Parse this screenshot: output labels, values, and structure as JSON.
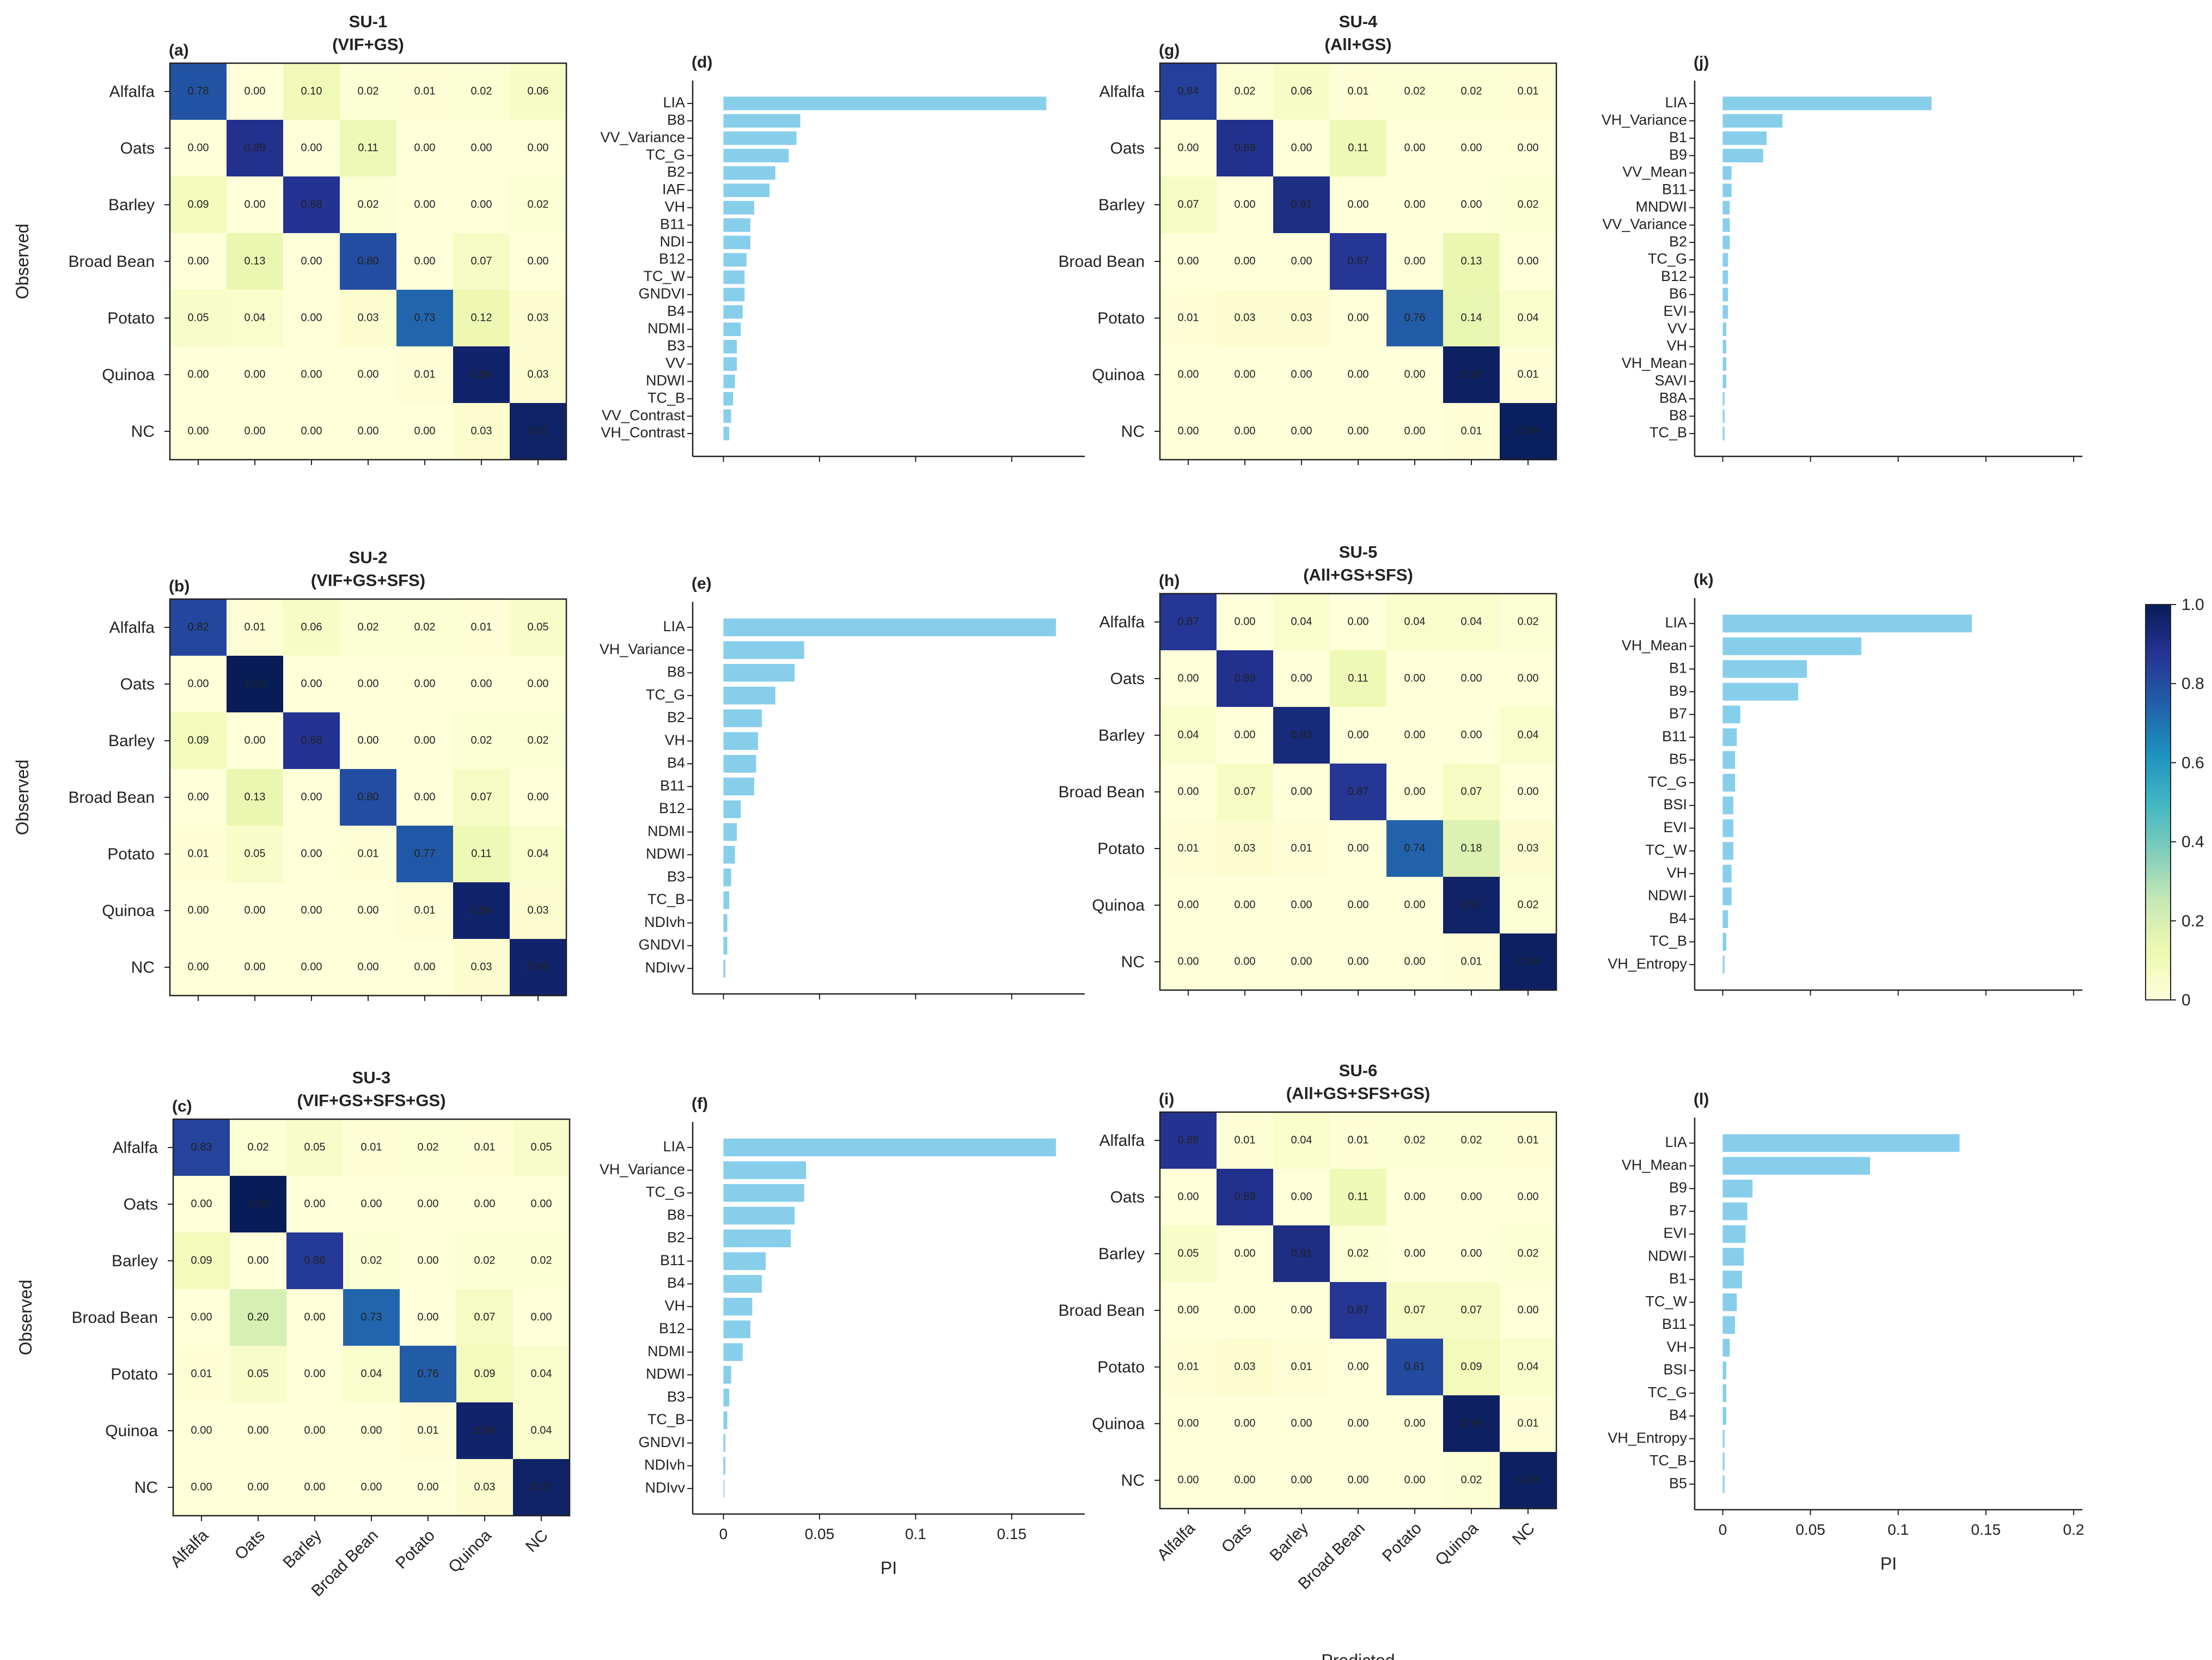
{
  "categories": [
    "Alfalfa",
    "Oats",
    "Barley",
    "Broad Bean",
    "Potato",
    "Quinoa",
    "NC"
  ],
  "axis_labels": {
    "observed": "Observed",
    "predicted": "Predicted",
    "pi": "PI"
  },
  "colorbar": {
    "min": 0,
    "max": 1,
    "ticks": [
      "0",
      "0.2",
      "0.4",
      "0.6",
      "0.8",
      "1.0"
    ],
    "colors": [
      "#ffffd9",
      "#edf8b1",
      "#c7e9b4",
      "#7fcdbb",
      "#41b6c4",
      "#1d91c0",
      "#225ea8",
      "#253494",
      "#081d58"
    ]
  },
  "bar_color": "#87ceeb",
  "chart_data": [
    {
      "type": "heatmap",
      "panel": "(a)",
      "title": "SU-1",
      "subtitle": "(VIF+GS)",
      "matrix": [
        [
          "0.78",
          "0.00",
          "0.10",
          "0.02",
          "0.01",
          "0.02",
          "0.06"
        ],
        [
          "0.00",
          "0.89",
          "0.00",
          "0.11",
          "0.00",
          "0.00",
          "0.00"
        ],
        [
          "0.09",
          "0.00",
          "0.88",
          "0.02",
          "0.00",
          "0.00",
          "0.02"
        ],
        [
          "0.00",
          "0.13",
          "0.00",
          "0.80",
          "0.00",
          "0.07",
          "0.00"
        ],
        [
          "0.05",
          "0.04",
          "0.00",
          "0.03",
          "0.73",
          "0.12",
          "0.03"
        ],
        [
          "0.00",
          "0.00",
          "0.00",
          "0.00",
          "0.01",
          "0.96",
          "0.03"
        ],
        [
          "0.00",
          "0.00",
          "0.00",
          "0.00",
          "0.00",
          "0.03",
          "0.97"
        ]
      ]
    },
    {
      "type": "heatmap",
      "panel": "(b)",
      "title": "SU-2",
      "subtitle": "(VIF+GS+SFS)",
      "matrix": [
        [
          "0.82",
          "0.01",
          "0.06",
          "0.02",
          "0.02",
          "0.01",
          "0.05"
        ],
        [
          "0.00",
          "1.00",
          "0.00",
          "0.00",
          "0.00",
          "0.00",
          "0.00"
        ],
        [
          "0.09",
          "0.00",
          "0.88",
          "0.00",
          "0.00",
          "0.02",
          "0.02"
        ],
        [
          "0.00",
          "0.13",
          "0.00",
          "0.80",
          "0.00",
          "0.07",
          "0.00"
        ],
        [
          "0.01",
          "0.05",
          "0.00",
          "0.01",
          "0.77",
          "0.11",
          "0.04"
        ],
        [
          "0.00",
          "0.00",
          "0.00",
          "0.00",
          "0.01",
          "0.96",
          "0.03"
        ],
        [
          "0.00",
          "0.00",
          "0.00",
          "0.00",
          "0.00",
          "0.03",
          "0.96"
        ]
      ]
    },
    {
      "type": "heatmap",
      "panel": "(c)",
      "title": "SU-3",
      "subtitle": "(VIF+GS+SFS+GS)",
      "matrix": [
        [
          "0.83",
          "0.02",
          "0.05",
          "0.01",
          "0.02",
          "0.01",
          "0.05"
        ],
        [
          "0.00",
          "1.00",
          "0.00",
          "0.00",
          "0.00",
          "0.00",
          "0.00"
        ],
        [
          "0.09",
          "0.00",
          "0.86",
          "0.02",
          "0.00",
          "0.02",
          "0.02"
        ],
        [
          "0.00",
          "0.20",
          "0.00",
          "0.73",
          "0.00",
          "0.07",
          "0.00"
        ],
        [
          "0.01",
          "0.05",
          "0.00",
          "0.04",
          "0.76",
          "0.09",
          "0.04"
        ],
        [
          "0.00",
          "0.00",
          "0.00",
          "0.00",
          "0.01",
          "0.96",
          "0.04"
        ],
        [
          "0.00",
          "0.00",
          "0.00",
          "0.00",
          "0.00",
          "0.03",
          "0.97"
        ]
      ]
    },
    {
      "type": "heatmap",
      "panel": "(g)",
      "title": "SU-4",
      "subtitle": "(All+GS)",
      "matrix": [
        [
          "0.84",
          "0.02",
          "0.06",
          "0.01",
          "0.02",
          "0.02",
          "0.01"
        ],
        [
          "0.00",
          "0.89",
          "0.00",
          "0.11",
          "0.00",
          "0.00",
          "0.00"
        ],
        [
          "0.07",
          "0.00",
          "0.91",
          "0.00",
          "0.00",
          "0.00",
          "0.02"
        ],
        [
          "0.00",
          "0.00",
          "0.00",
          "0.87",
          "0.00",
          "0.13",
          "0.00"
        ],
        [
          "0.01",
          "0.03",
          "0.03",
          "0.00",
          "0.76",
          "0.14",
          "0.04"
        ],
        [
          "0.00",
          "0.00",
          "0.00",
          "0.00",
          "0.00",
          "0.98",
          "0.01"
        ],
        [
          "0.00",
          "0.00",
          "0.00",
          "0.00",
          "0.00",
          "0.01",
          "0.99"
        ]
      ]
    },
    {
      "type": "heatmap",
      "panel": "(h)",
      "title": "SU-5",
      "subtitle": "(All+GS+SFS)",
      "matrix": [
        [
          "0.87",
          "0.00",
          "0.04",
          "0.00",
          "0.04",
          "0.04",
          "0.02"
        ],
        [
          "0.00",
          "0.89",
          "0.00",
          "0.11",
          "0.00",
          "0.00",
          "0.00"
        ],
        [
          "0.04",
          "0.00",
          "0.93",
          "0.00",
          "0.00",
          "0.00",
          "0.04"
        ],
        [
          "0.00",
          "0.07",
          "0.00",
          "0.87",
          "0.00",
          "0.07",
          "0.00"
        ],
        [
          "0.01",
          "0.03",
          "0.01",
          "0.00",
          "0.74",
          "0.18",
          "0.03"
        ],
        [
          "0.00",
          "0.00",
          "0.00",
          "0.00",
          "0.00",
          "0.97",
          "0.02"
        ],
        [
          "0.00",
          "0.00",
          "0.00",
          "0.00",
          "0.00",
          "0.01",
          "0.98"
        ]
      ]
    },
    {
      "type": "heatmap",
      "panel": "(i)",
      "title": "SU-6",
      "subtitle": "(All+GS+SFS+GS)",
      "matrix": [
        [
          "0.88",
          "0.01",
          "0.04",
          "0.01",
          "0.02",
          "0.02",
          "0.01"
        ],
        [
          "0.00",
          "0.89",
          "0.00",
          "0.11",
          "0.00",
          "0.00",
          "0.00"
        ],
        [
          "0.05",
          "0.00",
          "0.91",
          "0.02",
          "0.00",
          "0.00",
          "0.02"
        ],
        [
          "0.00",
          "0.00",
          "0.00",
          "0.87",
          "0.07",
          "0.07",
          "0.00"
        ],
        [
          "0.01",
          "0.03",
          "0.01",
          "0.00",
          "0.81",
          "0.09",
          "0.04"
        ],
        [
          "0.00",
          "0.00",
          "0.00",
          "0.00",
          "0.00",
          "0.98",
          "0.01"
        ],
        [
          "0.00",
          "0.00",
          "0.00",
          "0.00",
          "0.00",
          "0.02",
          "0.98"
        ]
      ]
    },
    {
      "type": "bar",
      "orientation": "horizontal",
      "panel": "(d)",
      "xlim": [
        -0.016,
        0.188
      ],
      "labels": [
        "LIA",
        "B8",
        "VV_Variance",
        "TC_G",
        "B2",
        "IAF",
        "VH",
        "B11",
        "NDI",
        "B12",
        "TC_W",
        "GNDVI",
        "B4",
        "NDMI",
        "B3",
        "VV",
        "NDWI",
        "TC_B",
        "VV_Contrast",
        "VH_Contrast"
      ],
      "values": [
        0.168,
        0.04,
        0.038,
        0.034,
        0.027,
        0.024,
        0.016,
        0.014,
        0.014,
        0.012,
        0.011,
        0.011,
        0.01,
        0.009,
        0.007,
        0.007,
        0.006,
        0.005,
        0.004,
        0.003
      ]
    },
    {
      "type": "bar",
      "orientation": "horizontal",
      "panel": "(e)",
      "xlim": [
        -0.016,
        0.188
      ],
      "labels": [
        "LIA",
        "VH_Variance",
        "B8",
        "TC_G",
        "B2",
        "VH",
        "B4",
        "B11",
        "B12",
        "NDMI",
        "NDWI",
        "B3",
        "TC_B",
        "NDIvh",
        "GNDVI",
        "NDIvv"
      ],
      "values": [
        0.173,
        0.042,
        0.037,
        0.027,
        0.02,
        0.018,
        0.017,
        0.016,
        0.009,
        0.007,
        0.006,
        0.004,
        0.003,
        0.002,
        0.002,
        0.001
      ]
    },
    {
      "type": "bar",
      "orientation": "horizontal",
      "panel": "(f)",
      "xlim": [
        -0.016,
        0.188
      ],
      "xticks": [
        0,
        0.05,
        0.1,
        0.15
      ],
      "xticklabels": [
        "0",
        "0.05",
        "0.1",
        "0.15"
      ],
      "xlabel": "PI",
      "labels": [
        "LIA",
        "VH_Variance",
        "TC_G",
        "B8",
        "B2",
        "B11",
        "B4",
        "VH",
        "B12",
        "NDMI",
        "NDWI",
        "B3",
        "TC_B",
        "GNDVI",
        "NDIvh",
        "NDIvv"
      ],
      "values": [
        0.173,
        0.043,
        0.042,
        0.037,
        0.035,
        0.022,
        0.02,
        0.015,
        0.014,
        0.01,
        0.004,
        0.003,
        0.002,
        0.001,
        0.001,
        0.0005
      ]
    },
    {
      "type": "bar",
      "orientation": "horizontal",
      "panel": "(j)",
      "xlim": [
        -0.016,
        0.205
      ],
      "labels": [
        "LIA",
        "VH_Variance",
        "B1",
        "B9",
        "VV_Mean",
        "B11",
        "MNDWI",
        "VV_Variance",
        "B2",
        "TC_G",
        "B12",
        "B6",
        "EVI",
        "VV",
        "VH",
        "VH_Mean",
        "SAVI",
        "B8A",
        "B8",
        "TC_B"
      ],
      "values": [
        0.119,
        0.034,
        0.025,
        0.023,
        0.005,
        0.005,
        0.004,
        0.004,
        0.004,
        0.003,
        0.003,
        0.003,
        0.003,
        0.002,
        0.002,
        0.002,
        0.002,
        0.001,
        0.001,
        0.001
      ]
    },
    {
      "type": "bar",
      "orientation": "horizontal",
      "panel": "(k)",
      "xlim": [
        -0.016,
        0.205
      ],
      "labels": [
        "LIA",
        "VH_Mean",
        "B1",
        "B9",
        "B7",
        "B11",
        "B5",
        "TC_G",
        "BSI",
        "EVI",
        "TC_W",
        "VH",
        "NDWI",
        "B4",
        "TC_B",
        "VH_Entropy"
      ],
      "values": [
        0.142,
        0.079,
        0.048,
        0.043,
        0.01,
        0.008,
        0.007,
        0.007,
        0.006,
        0.006,
        0.006,
        0.005,
        0.005,
        0.003,
        0.002,
        0.001
      ]
    },
    {
      "type": "bar",
      "orientation": "horizontal",
      "panel": "(l)",
      "xlim": [
        -0.016,
        0.205
      ],
      "xticks": [
        0,
        0.05,
        0.1,
        0.15,
        0.2
      ],
      "xticklabels": [
        "0",
        "0.05",
        "0.1",
        "0.15",
        "0.2"
      ],
      "xlabel": "PI",
      "labels": [
        "LIA",
        "VH_Mean",
        "B9",
        "B7",
        "EVI",
        "NDWI",
        "B1",
        "TC_W",
        "B11",
        "VH",
        "BSI",
        "TC_G",
        "B4",
        "VH_Entropy",
        "TC_B",
        "B5"
      ],
      "values": [
        0.135,
        0.084,
        0.017,
        0.014,
        0.013,
        0.012,
        0.011,
        0.008,
        0.007,
        0.004,
        0.002,
        0.002,
        0.002,
        0.001,
        0.001,
        0.001
      ]
    }
  ]
}
